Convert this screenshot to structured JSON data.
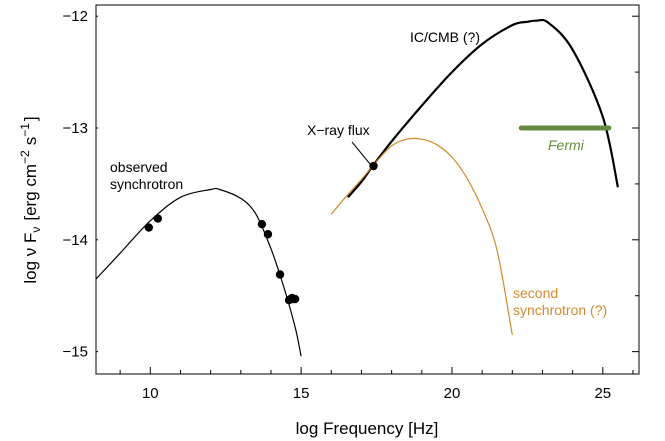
{
  "chart_data": {
    "type": "line",
    "xlabel": "log Frequency [Hz]",
    "ylabel_main": "log ν F",
    "ylabel_sub": "ν",
    "ylabel_unit_open": "[erg cm",
    "ylabel_exp1": "−2",
    "ylabel_mid": "s",
    "ylabel_exp2": "−1",
    "ylabel_close": "]",
    "xlim": [
      8.2,
      26.2
    ],
    "ylim": [
      -15.2,
      -11.9
    ],
    "x_ticks": [
      10,
      15,
      20,
      25
    ],
    "x_tick_labels": [
      "10",
      "15",
      "20",
      "25"
    ],
    "x_minor_ticks": [
      9,
      11,
      12,
      13,
      14,
      16,
      17,
      18,
      19,
      21,
      22,
      23,
      24,
      26
    ],
    "y_ticks": [
      -12,
      -13,
      -14,
      -15
    ],
    "y_tick_labels": [
      "−12",
      "−13",
      "−14",
      "−15"
    ],
    "y_minor_ticks": [
      -12.5,
      -13.5,
      -14.5
    ],
    "grid": false,
    "series": [
      {
        "name": "observed synchrotron",
        "color": "#000000",
        "x": [
          8.2,
          9.0,
          10.0,
          11.0,
          12.0,
          12.3,
          13.0,
          13.5,
          14.0,
          14.4,
          14.8,
          15.0
        ],
        "y": [
          -14.35,
          -14.12,
          -13.83,
          -13.62,
          -13.55,
          -13.55,
          -13.63,
          -13.77,
          -14.08,
          -14.4,
          -14.78,
          -15.04
        ]
      },
      {
        "name": "IC/CMB (?)",
        "color": "#000000",
        "x": [
          16.55,
          17.0,
          17.4,
          18.0,
          19.0,
          20.0,
          21.0,
          22.0,
          22.5,
          22.8,
          23.2,
          24.0,
          25.0,
          25.5
        ],
        "y": [
          -13.62,
          -13.48,
          -13.33,
          -13.12,
          -12.8,
          -12.5,
          -12.25,
          -12.08,
          -12.05,
          -12.04,
          -12.06,
          -12.3,
          -12.9,
          -13.53
        ]
      },
      {
        "name": "second synchrotron (?)",
        "color": "#d28a2c",
        "x": [
          16.0,
          16.5,
          17.0,
          17.5,
          18.0,
          18.5,
          19.0,
          19.5,
          20.0,
          20.5,
          21.0,
          21.5,
          22.0
        ],
        "y": [
          -13.77,
          -13.61,
          -13.46,
          -13.3,
          -13.16,
          -13.1,
          -13.1,
          -13.15,
          -13.26,
          -13.45,
          -13.72,
          -14.1,
          -14.85
        ]
      }
    ],
    "points": {
      "x": [
        9.95,
        10.25,
        13.7,
        13.9,
        14.3,
        14.6,
        14.65,
        14.7,
        14.75,
        14.8,
        17.4
      ],
      "y": [
        -13.89,
        -13.81,
        -13.86,
        -13.95,
        -14.31,
        -14.54,
        -14.53,
        -14.52,
        -14.53,
        -14.53,
        -13.34
      ]
    },
    "fermi_band": {
      "x": [
        22.3,
        25.2
      ],
      "y": -13.0,
      "color": "#638c3c"
    },
    "annotations": {
      "observed_line1": "observed",
      "observed_line2": "synchrotron",
      "ic_cmb": "IC/CMB (?)",
      "xray": "X−ray flux",
      "fermi": "Fermi",
      "second_line1": "second",
      "second_line2": "synchrotron (?)"
    }
  }
}
